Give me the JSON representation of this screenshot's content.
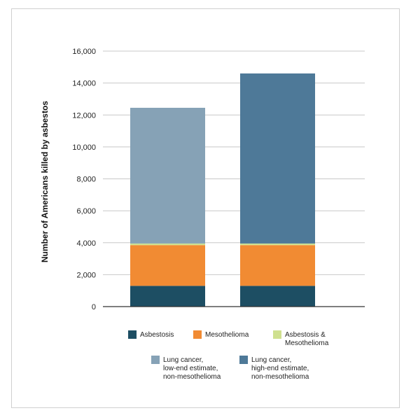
{
  "chart_data": {
    "type": "bar",
    "stacked": true,
    "categories": [
      "",
      ""
    ],
    "ylabel": "Number of Americans killed by asbestos",
    "ylim": [
      0,
      16000
    ],
    "yticks": [
      "0",
      "2,000",
      "4,000",
      "6,000",
      "8,000",
      "10,000",
      "12,000",
      "14,000",
      "16,000"
    ],
    "grid": true,
    "series": [
      {
        "name": "Asbestosis",
        "color": "#1d4e63",
        "values": [
          1300,
          1300
        ]
      },
      {
        "name": "Mesothelioma",
        "color": "#f18b33",
        "values": [
          2550,
          2550
        ]
      },
      {
        "name": "Asbestosis & Mesothelioma",
        "color": "#cfe08f",
        "values": [
          100,
          100
        ]
      },
      {
        "name": "Lung cancer, low-end estimate, non-mesothelioma",
        "color": "#86a2b6",
        "values": [
          8500,
          0
        ]
      },
      {
        "name": "Lung cancer, high-end estimate, non-mesothelioma",
        "color": "#4e7998",
        "values": [
          0,
          10650
        ]
      }
    ],
    "legend": [
      {
        "lines": [
          "Asbestosis"
        ],
        "color": "#1d4e63"
      },
      {
        "lines": [
          "Mesothelioma"
        ],
        "color": "#f18b33"
      },
      {
        "lines": [
          "Asbestosis &",
          "Mesothelioma"
        ],
        "color": "#cfe08f"
      },
      {
        "lines": [
          "Lung cancer,",
          "low-end estimate,",
          "non-mesothelioma"
        ],
        "color": "#86a2b6"
      },
      {
        "lines": [
          "Lung cancer,",
          "high-end estimate,",
          "non-mesothelioma"
        ],
        "color": "#4e7998"
      }
    ]
  }
}
